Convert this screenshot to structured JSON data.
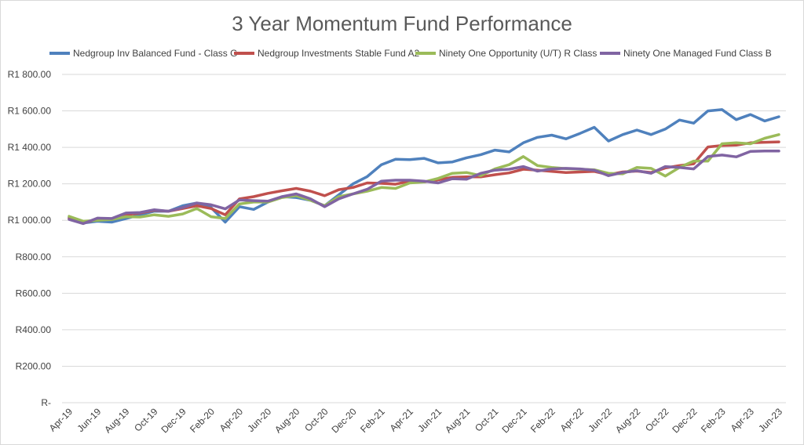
{
  "chart_data": {
    "type": "line",
    "title": "3 Year Momentum Fund Performance",
    "xlabel": "",
    "ylabel": "",
    "ylim": [
      0,
      1800
    ],
    "y_ticks": [
      {
        "value": 1800,
        "label": "R1 800.00"
      },
      {
        "value": 1600,
        "label": "R1 600.00"
      },
      {
        "value": 1400,
        "label": "R1 400.00"
      },
      {
        "value": 1200,
        "label": "R1 200.00"
      },
      {
        "value": 1000,
        "label": "R1 000.00"
      },
      {
        "value": 800,
        "label": "R800.00"
      },
      {
        "value": 600,
        "label": "R600.00"
      },
      {
        "value": 400,
        "label": "R400.00"
      },
      {
        "value": 200,
        "label": "R200.00"
      },
      {
        "value": 0,
        "label": "R-"
      }
    ],
    "legend_position": "top",
    "grid": true,
    "categories": [
      "Apr-19",
      "May-19",
      "Jun-19",
      "Jul-19",
      "Aug-19",
      "Sep-19",
      "Oct-19",
      "Nov-19",
      "Dec-19",
      "Jan-20",
      "Feb-20",
      "Mar-20",
      "Apr-20",
      "May-20",
      "Jun-20",
      "Jul-20",
      "Aug-20",
      "Sep-20",
      "Oct-20",
      "Nov-20",
      "Dec-20",
      "Jan-21",
      "Feb-21",
      "Mar-21",
      "Apr-21",
      "May-21",
      "Jun-21",
      "Jul-21",
      "Aug-21",
      "Sep-21",
      "Oct-21",
      "Nov-21",
      "Dec-21",
      "Jan-22",
      "Feb-22",
      "Mar-22",
      "Apr-22",
      "May-22",
      "Jun-22",
      "Jul-22",
      "Aug-22",
      "Sep-22",
      "Oct-22",
      "Nov-22",
      "Dec-22",
      "Jan-23",
      "Feb-23",
      "Mar-23",
      "Apr-23",
      "May-23",
      "Jun-23"
    ],
    "x_tick_labels": [
      "Apr-19",
      "Jun-19",
      "Aug-19",
      "Oct-19",
      "Dec-19",
      "Feb-20",
      "Apr-20",
      "Jun-20",
      "Aug-20",
      "Oct-20",
      "Dec-20",
      "Feb-21",
      "Apr-21",
      "Jun-21",
      "Aug-21",
      "Oct-21",
      "Dec-21",
      "Feb-22",
      "Apr-22",
      "Jun-22",
      "Aug-22",
      "Oct-22",
      "Dec-22",
      "Feb-23",
      "Apr-23",
      "Jun-23"
    ],
    "series": [
      {
        "name": "Nedgroup Inv Balanced Fund - Class G",
        "color": "#4f81bd",
        "values": [
          1015,
          985,
          995,
          990,
          1010,
          1030,
          1050,
          1050,
          1080,
          1095,
          1070,
          990,
          1075,
          1060,
          1100,
          1130,
          1125,
          1110,
          1080,
          1140,
          1200,
          1240,
          1305,
          1335,
          1333,
          1340,
          1315,
          1320,
          1343,
          1360,
          1385,
          1375,
          1425,
          1455,
          1467,
          1447,
          1477,
          1510,
          1435,
          1470,
          1495,
          1470,
          1500,
          1550,
          1533,
          1600,
          1607,
          1552,
          1580,
          1545,
          1568
        ]
      },
      {
        "name": "Nedgroup Investments Stable Fund A2",
        "color": "#c0504d",
        "values": [
          1010,
          985,
          1005,
          1005,
          1030,
          1040,
          1055,
          1050,
          1065,
          1080,
          1065,
          1030,
          1118,
          1130,
          1148,
          1162,
          1175,
          1160,
          1135,
          1168,
          1180,
          1205,
          1203,
          1198,
          1215,
          1210,
          1222,
          1236,
          1238,
          1238,
          1250,
          1260,
          1280,
          1275,
          1268,
          1262,
          1265,
          1268,
          1250,
          1265,
          1270,
          1262,
          1287,
          1300,
          1310,
          1402,
          1410,
          1412,
          1425,
          1428,
          1430
        ]
      },
      {
        "name": "Ninety One Opportunity (U/T) R Class",
        "color": "#9bbb59",
        "values": [
          1022,
          995,
          1000,
          1005,
          1020,
          1018,
          1030,
          1022,
          1035,
          1065,
          1020,
          1010,
          1090,
          1100,
          1100,
          1125,
          1135,
          1110,
          1080,
          1130,
          1145,
          1160,
          1180,
          1175,
          1205,
          1210,
          1230,
          1258,
          1262,
          1245,
          1282,
          1305,
          1350,
          1300,
          1290,
          1283,
          1280,
          1277,
          1258,
          1255,
          1290,
          1285,
          1243,
          1290,
          1325,
          1325,
          1420,
          1425,
          1420,
          1450,
          1470
        ]
      },
      {
        "name": "Ninety One Managed Fund Class B",
        "color": "#8064a2",
        "values": [
          1005,
          982,
          1012,
          1010,
          1040,
          1043,
          1058,
          1050,
          1070,
          1095,
          1085,
          1063,
          1112,
          1108,
          1105,
          1130,
          1145,
          1118,
          1075,
          1118,
          1145,
          1170,
          1215,
          1220,
          1220,
          1215,
          1205,
          1228,
          1225,
          1258,
          1275,
          1280,
          1295,
          1270,
          1282,
          1285,
          1282,
          1275,
          1245,
          1262,
          1272,
          1258,
          1295,
          1290,
          1282,
          1350,
          1358,
          1348,
          1378,
          1380,
          1380
        ]
      }
    ]
  }
}
